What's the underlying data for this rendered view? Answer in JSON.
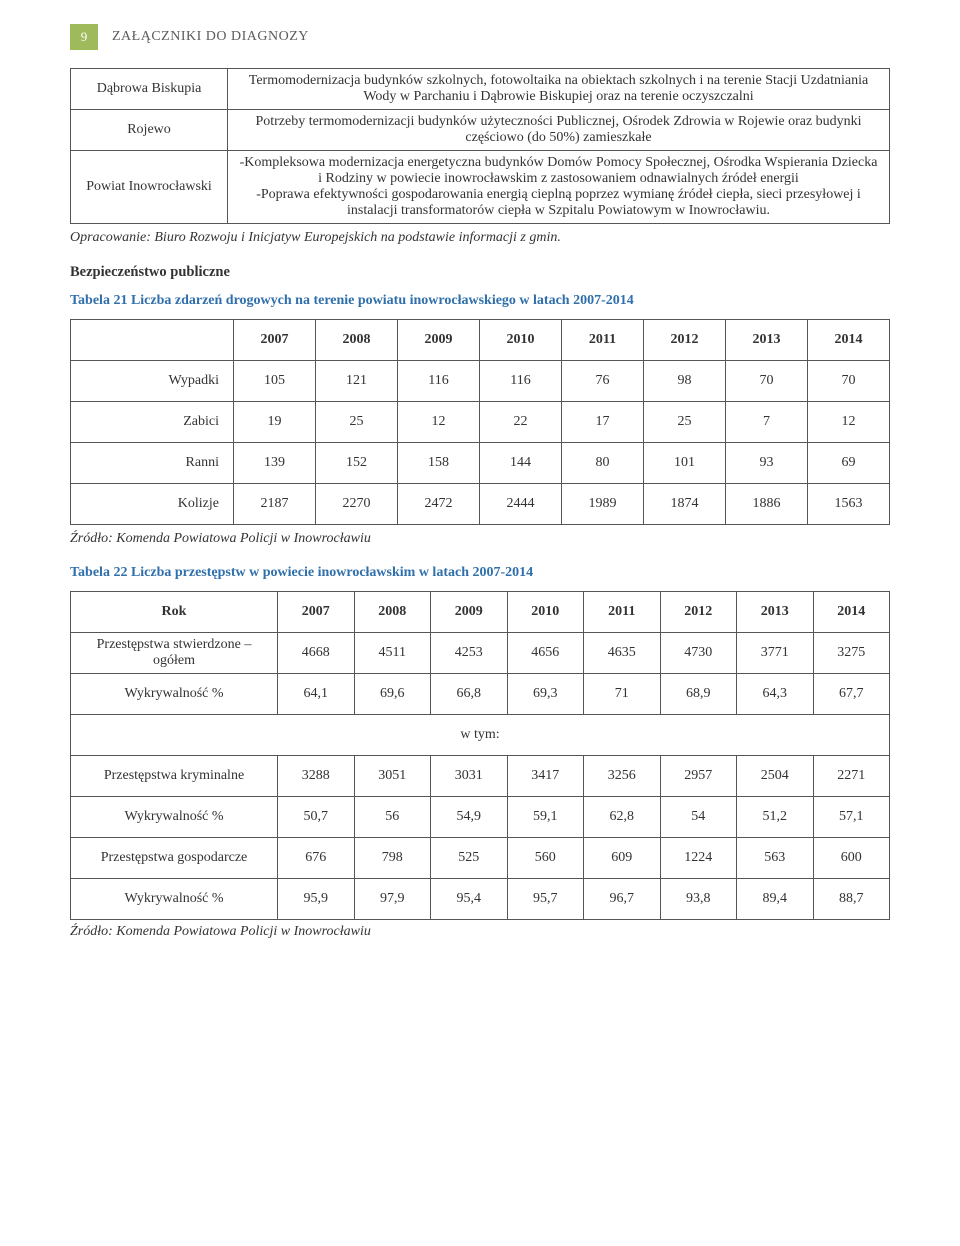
{
  "header": {
    "page_number": "9",
    "title": "ZAŁĄCZNIKI DO DIAGNOZY"
  },
  "table1": {
    "rows": [
      {
        "label": "Dąbrowa Biskupia",
        "text": "Termomodernizacja budynków szkolnych, fotowoltaika na obiektach szkolnych i na terenie Stacji Uzdatniania Wody w Parchaniu i Dąbrowie Biskupiej oraz na terenie oczyszczalni"
      },
      {
        "label": "Rojewo",
        "text": "Potrzeby termomodernizacji budynków użyteczności Publicznej, Ośrodek Zdrowia w Rojewie oraz budynki częściowo (do 50%) zamieszkałe"
      },
      {
        "label": "Powiat Inowrocławski",
        "text": "-Kompleksowa modernizacja energetyczna budynków Domów Pomocy Społecznej, Ośrodka Wspierania Dziecka i Rodziny w powiecie inowrocławskim z zastosowaniem odnawialnych źródeł energii\n-Poprawa efektywności gospodarowania energią cieplną poprzez wymianę źródeł ciepła, sieci przesyłowej i instalacji transformatorów ciepła w Szpitalu Powiatowym w Inowrocławiu."
      }
    ]
  },
  "note1": "Opracowanie: Biuro Rozwoju i Inicjatyw Europejskich na podstawie informacji z gmin.",
  "section_heading": "Bezpieczeństwo publiczne",
  "caption21": "Tabela 21 Liczba zdarzeń drogowych na terenie powiatu inowrocławskiego w latach 2007-2014",
  "table2": {
    "years": [
      "2007",
      "2008",
      "2009",
      "2010",
      "2011",
      "2012",
      "2013",
      "2014"
    ],
    "rows": [
      {
        "label": "Wypadki",
        "vals": [
          "105",
          "121",
          "116",
          "116",
          "76",
          "98",
          "70",
          "70"
        ]
      },
      {
        "label": "Zabici",
        "vals": [
          "19",
          "25",
          "12",
          "22",
          "17",
          "25",
          "7",
          "12"
        ]
      },
      {
        "label": "Ranni",
        "vals": [
          "139",
          "152",
          "158",
          "144",
          "80",
          "101",
          "93",
          "69"
        ]
      },
      {
        "label": "Kolizje",
        "vals": [
          "2187",
          "2270",
          "2472",
          "2444",
          "1989",
          "1874",
          "1886",
          "1563"
        ]
      }
    ]
  },
  "source1": "Źródło: Komenda Powiatowa Policji w Inowrocławiu",
  "caption22": "Tabela 22 Liczba przestępstw w powiecie inowrocławskim w latach 2007-2014",
  "table3": {
    "head_label": "Rok",
    "years": [
      "2007",
      "2008",
      "2009",
      "2010",
      "2011",
      "2012",
      "2013",
      "2014"
    ],
    "rows": [
      {
        "label": "Przestępstwa stwierdzone – ogółem",
        "vals": [
          "4668",
          "4511",
          "4253",
          "4656",
          "4635",
          "4730",
          "3771",
          "3275"
        ]
      },
      {
        "label": "Wykrywalność %",
        "vals": [
          "64,1",
          "69,6",
          "66,8",
          "69,3",
          "71",
          "68,9",
          "64,3",
          "67,7"
        ]
      }
    ],
    "span_label": "w tym:",
    "rows2": [
      {
        "label": "Przestępstwa kryminalne",
        "vals": [
          "3288",
          "3051",
          "3031",
          "3417",
          "3256",
          "2957",
          "2504",
          "2271"
        ]
      },
      {
        "label": "Wykrywalność %",
        "vals": [
          "50,7",
          "56",
          "54,9",
          "59,1",
          "62,8",
          "54",
          "51,2",
          "57,1"
        ]
      },
      {
        "label": "Przestępstwa gospodarcze",
        "vals": [
          "676",
          "798",
          "525",
          "560",
          "609",
          "1224",
          "563",
          "600"
        ]
      },
      {
        "label": "Wykrywalność %",
        "vals": [
          "95,9",
          "97,9",
          "95,4",
          "95,7",
          "96,7",
          "93,8",
          "89,4",
          "88,7"
        ]
      }
    ]
  },
  "source2": "Źródło: Komenda Powiatowa Policji w Inowrocławiu"
}
